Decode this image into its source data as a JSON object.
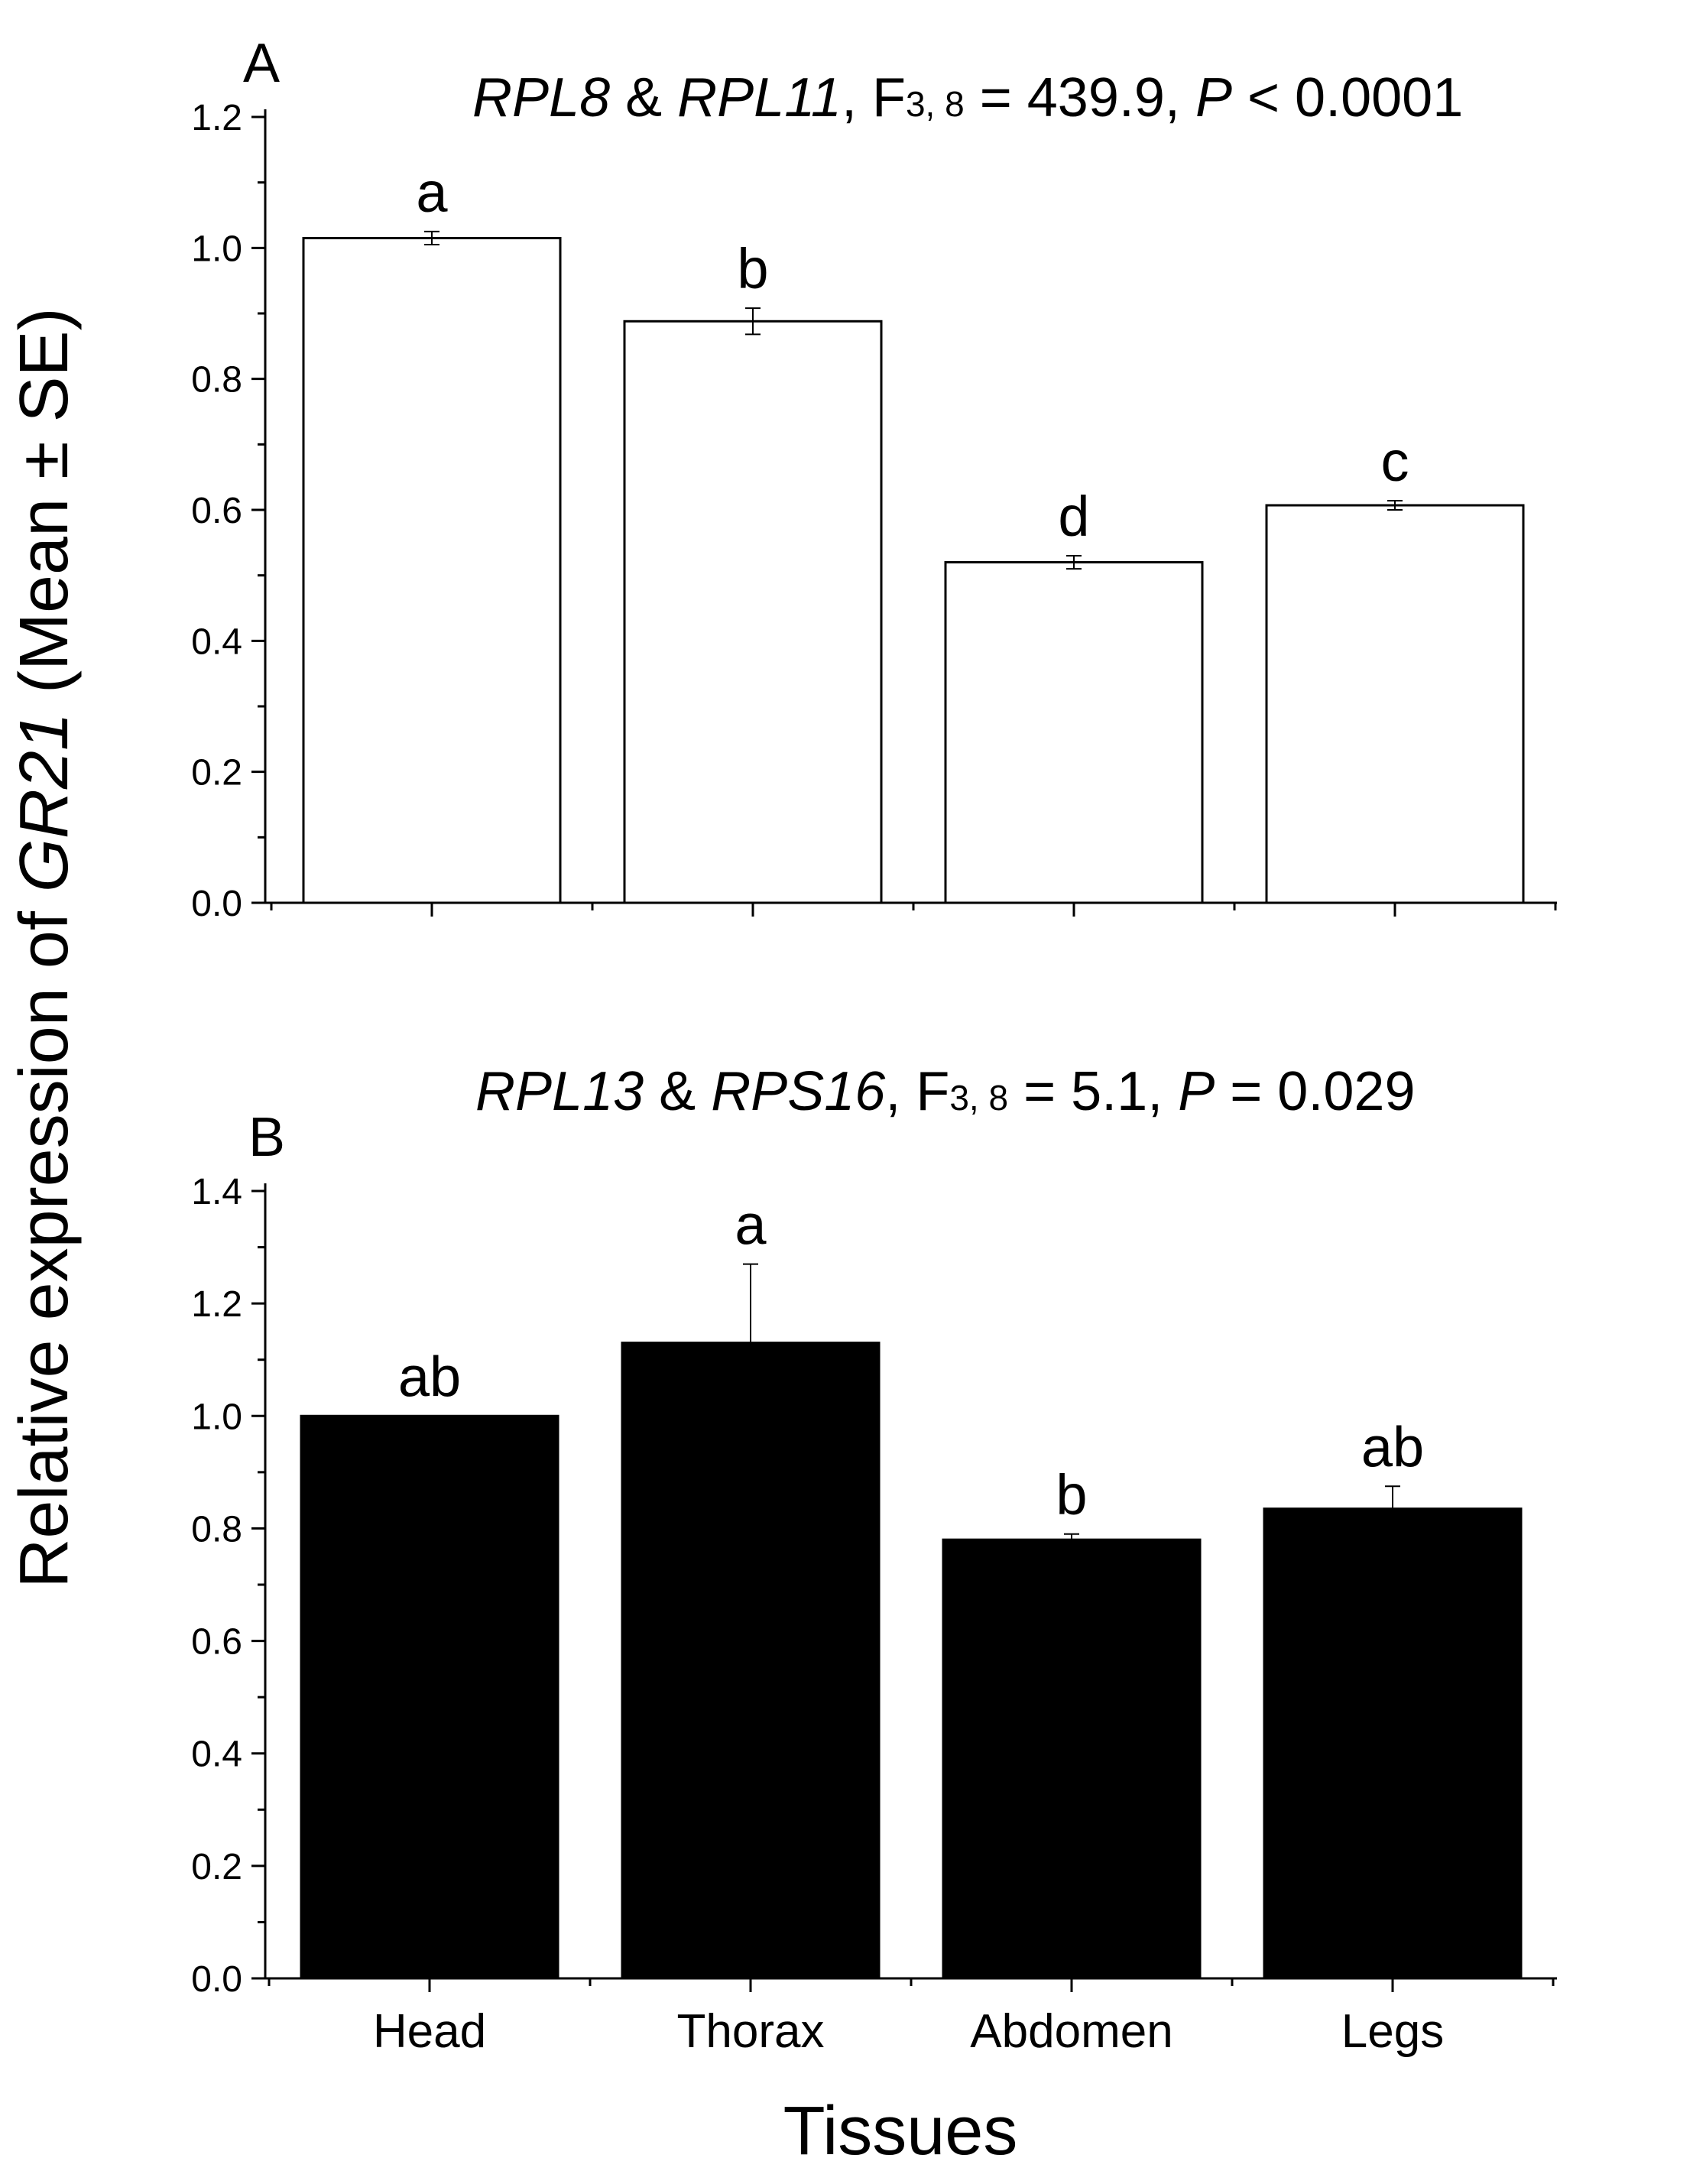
{
  "ylabel": {
    "prefix": "Relative expression of ",
    "gene": "GR21",
    "suffix": " (Mean ± SE)"
  },
  "xlabel": "Tissues",
  "chart_data": [
    {
      "type": "bar",
      "panel": "A",
      "title": {
        "ref1": "RPL8",
        "amp": " & ",
        "ref2": "RPL11",
        "f_pre": ", F",
        "f_sub": "3, 8",
        "f_val": " = 439.9, ",
        "p_sym": "P",
        "p_val": " < 0.0001"
      },
      "categories": [
        "Head",
        "Thorax",
        "Abdomen",
        "Legs"
      ],
      "values": [
        1.015,
        0.888,
        0.52,
        0.607
      ],
      "errors": [
        0.01,
        0.02,
        0.01,
        0.007
      ],
      "significance": [
        "a",
        "b",
        "d",
        "c"
      ],
      "ylim": [
        0,
        1.2
      ],
      "yticks": [
        "0.0",
        "0.2",
        "0.4",
        "0.6",
        "0.8",
        "1.0",
        "1.2"
      ],
      "bar_fill": "#ffffff",
      "bar_stroke": "#000000"
    },
    {
      "type": "bar",
      "panel": "B",
      "title": {
        "ref1": "RPL13",
        "amp": " & ",
        "ref2": "RPS16",
        "f_pre": ", F",
        "f_sub": "3, 8",
        "f_val": " = 5.1, ",
        "p_sym": "P",
        "p_val": " = 0.029"
      },
      "categories": [
        "Head",
        "Thorax",
        "Abdomen",
        "Legs"
      ],
      "values": [
        1.0,
        1.13,
        0.78,
        0.835
      ],
      "errors": [
        0.0,
        0.14,
        0.01,
        0.04
      ],
      "significance": [
        "ab",
        "a",
        "b",
        "ab"
      ],
      "ylim": [
        0,
        1.4
      ],
      "yticks": [
        "0.0",
        "0.2",
        "0.4",
        "0.6",
        "0.8",
        "1.0",
        "1.2",
        "1.4"
      ],
      "bar_fill": "#000000",
      "bar_stroke": "#000000"
    }
  ]
}
